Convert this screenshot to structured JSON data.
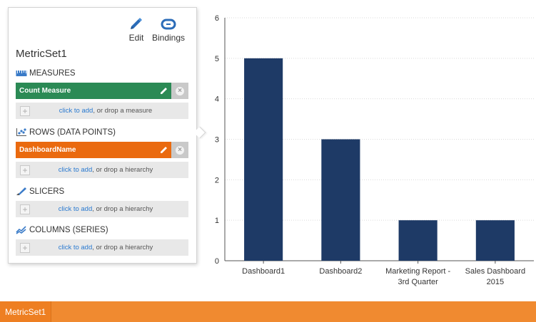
{
  "panel": {
    "title": "MetricSet1",
    "edit_label": "Edit",
    "bindings_label": "Bindings",
    "sections": {
      "measures": {
        "heading": "MEASURES",
        "field": "Count Measure",
        "link": "click to add",
        "hint": ", or drop a measure"
      },
      "rows": {
        "heading": "ROWS (DATA POINTS)",
        "field": "DashboardName",
        "link": "click to add",
        "hint": ", or drop a hierarchy"
      },
      "slicers": {
        "heading": "SLICERS",
        "link": "click to add",
        "hint": ", or drop a hierarchy"
      },
      "columns": {
        "heading": "COLUMNS (SERIES)",
        "link": "click to add",
        "hint": ", or drop a hierarchy"
      }
    },
    "colors": {
      "measure": "#2b8a55",
      "row": "#ea6a0f",
      "link": "#2a7ad0"
    }
  },
  "chart_data": {
    "type": "bar",
    "categories": [
      "Dashboard1",
      "Dashboard2",
      "Marketing Report - 3rd Quarter",
      "Sales Dashboard 2015"
    ],
    "category_lines": [
      [
        "Dashboard1"
      ],
      [
        "Dashboard2"
      ],
      [
        "Marketing Report -",
        "3rd Quarter"
      ],
      [
        "Sales Dashboard",
        "2015"
      ]
    ],
    "values": [
      5,
      3,
      1,
      1
    ],
    "ylim": [
      0,
      6
    ],
    "yticks": [
      0,
      1,
      2,
      3,
      4,
      5,
      6
    ],
    "grid": true,
    "bar_color": "#1e3a66"
  },
  "tabs": [
    {
      "label": "MetricSet1"
    }
  ]
}
